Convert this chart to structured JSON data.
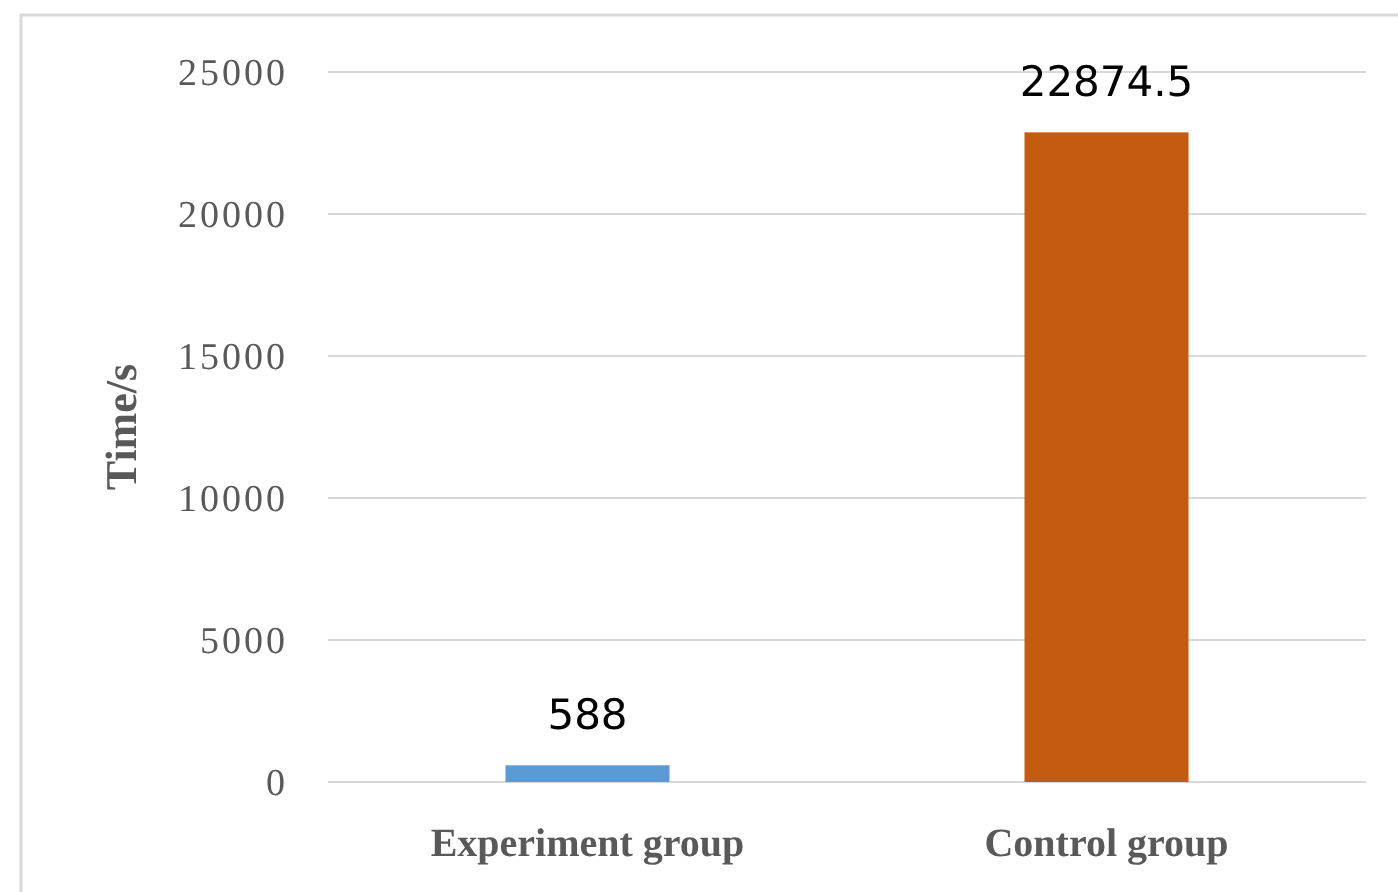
{
  "chart_data": {
    "type": "bar",
    "ylabel": "Time/s",
    "categories": [
      "Experiment group",
      "Control group"
    ],
    "values": [
      588,
      22874.5
    ],
    "colors": [
      "#5b9bd5",
      "#c55a11"
    ],
    "ylim": [
      0,
      25000
    ],
    "yticks": [
      0,
      5000,
      10000,
      15000,
      20000,
      25000
    ],
    "grid": "y",
    "data_labels": true
  }
}
